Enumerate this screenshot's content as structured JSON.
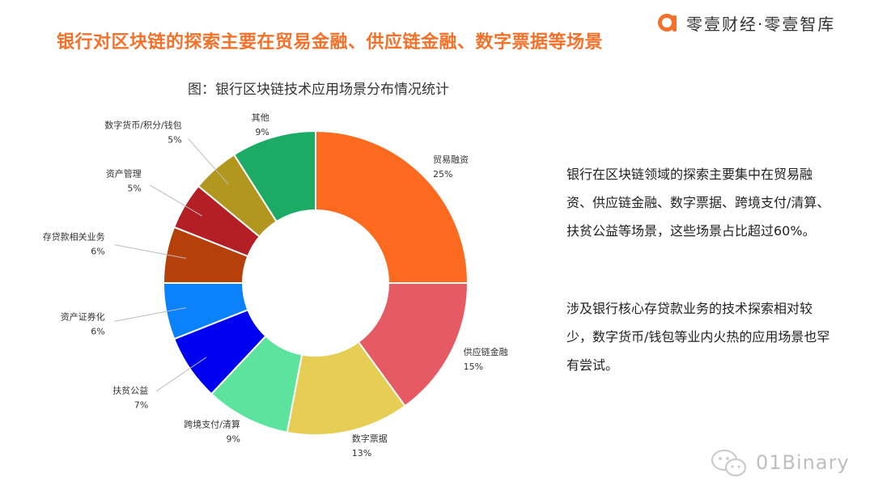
{
  "headline": "银行对区块链的探索主要在贸易金融、供应链金融、数字票据等场景",
  "brand": {
    "name": "零壹财经·零壹智库",
    "accent": "#f4712a"
  },
  "chart_title": "图：银行区块链技术应用场景分布情况统计",
  "chart_data": {
    "type": "pie",
    "donut": true,
    "categories": [
      "贸易融资",
      "供应链金融",
      "数字票据",
      "跨境支付/清算",
      "扶贫公益",
      "资产证券化",
      "存贷款相关业务",
      "资产管理",
      "数字货币/积分/钱包",
      "其他"
    ],
    "values": [
      25,
      15,
      13,
      9,
      7,
      6,
      6,
      5,
      5,
      9
    ],
    "labels_pct": [
      "25%",
      "15%",
      "13%",
      "9%",
      "7%",
      "6%",
      "6%",
      "5%",
      "5%",
      "9%"
    ],
    "colors": [
      "#fc6a20",
      "#e65a63",
      "#e6cd54",
      "#5ce39e",
      "#0000f0",
      "#0982fb",
      "#b5400a",
      "#b31f25",
      "#b1971e",
      "#1bab64"
    ],
    "title": "图：银行区块链技术应用场景分布情况统计"
  },
  "side_text": {
    "para1": "银行在区块链领域的探索主要集中在贸易融资、供应链金融、数字票据、跨境支付/清算、扶贫公益等场景，这些场景占比超过60%。",
    "para2": "涉及银行核心存贷款业务的技术探索相对较少，数字货币/钱包等业内火热的应用场景也罕有尝试。"
  },
  "watermark": {
    "text": "01Binary",
    "icon": "wechat-icon"
  }
}
